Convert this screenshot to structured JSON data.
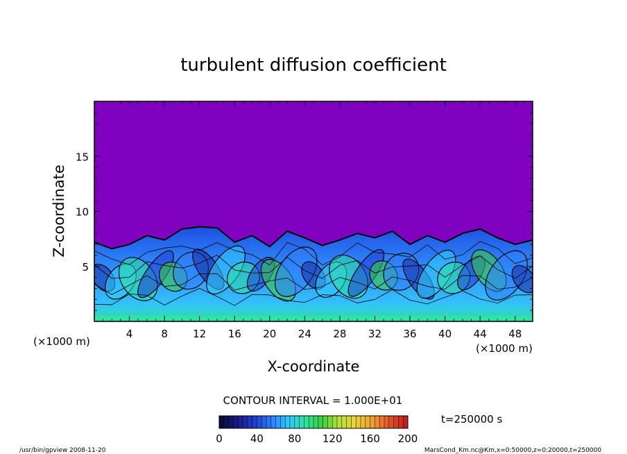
{
  "chart_data": {
    "type": "heatmap",
    "title": "turbulent diffusion coefficient",
    "xlabel": "X-coordinate",
    "ylabel": "Z-coordinate",
    "x_unit": "(×1000 m)",
    "y_unit": "(×1000 m)",
    "xlim": [
      0,
      50
    ],
    "ylim": [
      0,
      20
    ],
    "xticks": [
      4,
      8,
      12,
      16,
      20,
      24,
      28,
      32,
      36,
      40,
      44,
      48
    ],
    "yticks": [
      5,
      10,
      15
    ],
    "contour_interval": "CONTOUR INTERVAL = 1.000E+01",
    "time_label": "t=250000 s",
    "colorbar": {
      "min": 0,
      "max": 200,
      "ticks": [
        0,
        40,
        80,
        120,
        160,
        200
      ],
      "colors": [
        "#0a0a3c",
        "#1a1a8a",
        "#1f3fcf",
        "#2f80ff",
        "#33c8ff",
        "#2ee6a0",
        "#3ccf3c",
        "#b8e23a",
        "#e8d23a",
        "#f0a030",
        "#e05a28",
        "#c02020"
      ]
    },
    "background_color": "#8000c0",
    "boundary_layer_top_profile": [
      [
        0,
        7.2
      ],
      [
        2,
        6.6
      ],
      [
        4,
        7.0
      ],
      [
        6,
        7.8
      ],
      [
        8,
        7.4
      ],
      [
        10,
        8.4
      ],
      [
        12,
        8.6
      ],
      [
        14,
        8.5
      ],
      [
        16,
        7.2
      ],
      [
        18,
        7.8
      ],
      [
        20,
        6.8
      ],
      [
        22,
        8.2
      ],
      [
        24,
        7.6
      ],
      [
        26,
        6.9
      ],
      [
        28,
        7.4
      ],
      [
        30,
        8.0
      ],
      [
        32,
        7.6
      ],
      [
        34,
        8.2
      ],
      [
        36,
        7.0
      ],
      [
        38,
        7.8
      ],
      [
        40,
        7.2
      ],
      [
        42,
        8.0
      ],
      [
        44,
        8.4
      ],
      [
        46,
        7.6
      ],
      [
        48,
        7.0
      ],
      [
        50,
        7.4
      ]
    ]
  },
  "footer": {
    "left": "/usr/bin/gpview  2008-11-20",
    "right": "MarsCond_Km.nc@Km,x=0:50000,z=0:20000,t=250000"
  }
}
